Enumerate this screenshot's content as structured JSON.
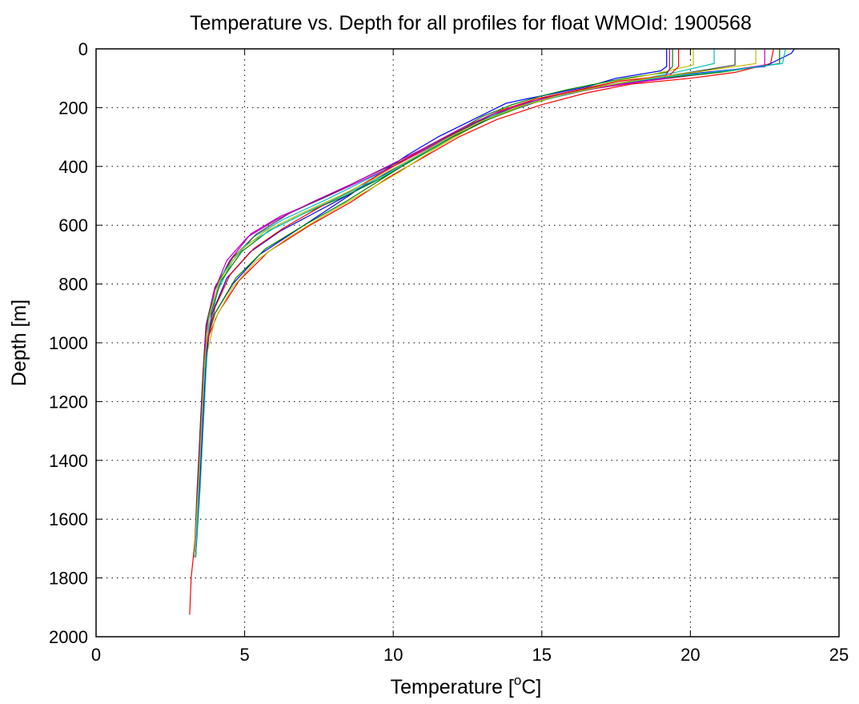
{
  "chart_data": {
    "type": "line",
    "title": "Temperature vs. Depth for all profiles for float WMOId: 1900568",
    "xlabel": "Temperature [",
    "xlabel_superscript": "o",
    "xlabel_suffix": "C]",
    "ylabel": "Depth [m]",
    "xlim": [
      0,
      25
    ],
    "ylim": [
      2000,
      0
    ],
    "y_reversed": true,
    "x_ticks": [
      0,
      5,
      10,
      15,
      20,
      25
    ],
    "y_ticks": [
      0,
      200,
      400,
      600,
      800,
      1000,
      1200,
      1400,
      1600,
      1800,
      2000
    ],
    "grid": true,
    "grid_style": "dotted",
    "legend": "none",
    "series": [
      {
        "color": "#0000ff",
        "points": [
          [
            19.2,
            0
          ],
          [
            19.2,
            60
          ],
          [
            19.0,
            75
          ],
          [
            17.5,
            100
          ],
          [
            16.5,
            130
          ],
          [
            15.5,
            150
          ],
          [
            14.5,
            170
          ],
          [
            13.8,
            185
          ],
          [
            13.5,
            200
          ],
          [
            12.5,
            250
          ],
          [
            11.5,
            300
          ],
          [
            10.5,
            360
          ],
          [
            9.6,
            420
          ],
          [
            8.5,
            500
          ],
          [
            7.0,
            600
          ],
          [
            5.5,
            700
          ],
          [
            4.6,
            800
          ],
          [
            4.0,
            900
          ],
          [
            3.7,
            1000
          ],
          [
            3.6,
            1200
          ],
          [
            3.5,
            1400
          ],
          [
            3.4,
            1600
          ],
          [
            3.3,
            1700
          ],
          [
            3.3,
            1730
          ]
        ]
      },
      {
        "color": "#008000",
        "points": [
          [
            19.4,
            0
          ],
          [
            19.4,
            60
          ],
          [
            19.2,
            80
          ],
          [
            17.8,
            100
          ],
          [
            16.8,
            120
          ],
          [
            15.8,
            140
          ],
          [
            15.0,
            160
          ],
          [
            14.0,
            190
          ],
          [
            13.0,
            230
          ],
          [
            11.8,
            300
          ],
          [
            10.6,
            380
          ],
          [
            9.5,
            450
          ],
          [
            8.4,
            520
          ],
          [
            7.0,
            600
          ],
          [
            5.7,
            680
          ],
          [
            4.7,
            780
          ],
          [
            4.0,
            900
          ],
          [
            3.7,
            1000
          ],
          [
            3.6,
            1200
          ],
          [
            3.5,
            1400
          ],
          [
            3.4,
            1600
          ],
          [
            3.3,
            1730
          ]
        ]
      },
      {
        "color": "#ff0000",
        "points": [
          [
            22.8,
            0
          ],
          [
            22.7,
            50
          ],
          [
            21.5,
            80
          ],
          [
            20.0,
            100
          ],
          [
            18.0,
            120
          ],
          [
            16.5,
            150
          ],
          [
            15.0,
            190
          ],
          [
            13.5,
            240
          ],
          [
            12.2,
            300
          ],
          [
            11.0,
            370
          ],
          [
            9.8,
            440
          ],
          [
            8.6,
            520
          ],
          [
            7.2,
            600
          ],
          [
            5.8,
            690
          ],
          [
            4.8,
            790
          ],
          [
            4.1,
            900
          ],
          [
            3.7,
            1000
          ],
          [
            3.6,
            1200
          ],
          [
            3.5,
            1400
          ],
          [
            3.4,
            1600
          ],
          [
            3.3,
            1700
          ],
          [
            3.2,
            1800
          ],
          [
            3.15,
            1925
          ]
        ]
      },
      {
        "color": "#00bfbf",
        "points": [
          [
            20.8,
            0
          ],
          [
            20.8,
            50
          ],
          [
            19.5,
            80
          ],
          [
            18.0,
            110
          ],
          [
            16.5,
            140
          ],
          [
            15.0,
            170
          ],
          [
            13.8,
            210
          ],
          [
            12.5,
            260
          ],
          [
            11.3,
            330
          ],
          [
            10.0,
            400
          ],
          [
            8.8,
            460
          ],
          [
            7.6,
            520
          ],
          [
            6.3,
            580
          ],
          [
            5.3,
            640
          ],
          [
            4.6,
            720
          ],
          [
            4.1,
            820
          ],
          [
            3.8,
            950
          ],
          [
            3.7,
            1100
          ],
          [
            3.6,
            1300
          ],
          [
            3.5,
            1500
          ],
          [
            3.35,
            1730
          ]
        ]
      },
      {
        "color": "#bf00bf",
        "points": [
          [
            22.5,
            0
          ],
          [
            22.5,
            55
          ],
          [
            20.5,
            85
          ],
          [
            18.5,
            110
          ],
          [
            16.8,
            135
          ],
          [
            15.2,
            165
          ],
          [
            14.0,
            200
          ],
          [
            12.8,
            250
          ],
          [
            11.5,
            320
          ],
          [
            10.2,
            390
          ],
          [
            8.9,
            450
          ],
          [
            7.6,
            510
          ],
          [
            6.2,
            570
          ],
          [
            5.2,
            630
          ],
          [
            4.5,
            720
          ],
          [
            4.0,
            820
          ],
          [
            3.7,
            950
          ],
          [
            3.6,
            1100
          ],
          [
            3.5,
            1300
          ],
          [
            3.45,
            1500
          ],
          [
            3.3,
            1730
          ]
        ]
      },
      {
        "color": "#bfbf00",
        "points": [
          [
            20.1,
            0
          ],
          [
            20.1,
            55
          ],
          [
            18.8,
            85
          ],
          [
            17.5,
            110
          ],
          [
            16.2,
            140
          ],
          [
            15.0,
            170
          ],
          [
            13.8,
            210
          ],
          [
            12.6,
            270
          ],
          [
            11.4,
            340
          ],
          [
            10.2,
            420
          ],
          [
            9.0,
            490
          ],
          [
            7.8,
            560
          ],
          [
            6.5,
            640
          ],
          [
            5.4,
            720
          ],
          [
            4.6,
            810
          ],
          [
            4.0,
            920
          ],
          [
            3.7,
            1050
          ],
          [
            3.6,
            1250
          ],
          [
            3.5,
            1450
          ],
          [
            3.35,
            1730
          ]
        ]
      },
      {
        "color": "#404040",
        "points": [
          [
            21.5,
            0
          ],
          [
            21.5,
            55
          ],
          [
            20.0,
            80
          ],
          [
            18.3,
            105
          ],
          [
            16.8,
            130
          ],
          [
            15.3,
            160
          ],
          [
            14.0,
            200
          ],
          [
            12.8,
            250
          ],
          [
            11.6,
            310
          ],
          [
            10.3,
            380
          ],
          [
            9.0,
            440
          ],
          [
            7.8,
            500
          ],
          [
            6.5,
            560
          ],
          [
            5.4,
            630
          ],
          [
            4.6,
            710
          ],
          [
            4.0,
            810
          ],
          [
            3.7,
            940
          ],
          [
            3.6,
            1100
          ],
          [
            3.5,
            1300
          ],
          [
            3.4,
            1500
          ],
          [
            3.3,
            1730
          ]
        ]
      },
      {
        "color": "#0000ff",
        "points": [
          [
            23.5,
            0
          ],
          [
            23.4,
            15
          ],
          [
            22.5,
            60
          ],
          [
            20.0,
            85
          ],
          [
            18.0,
            110
          ],
          [
            16.5,
            140
          ],
          [
            15.0,
            175
          ],
          [
            13.8,
            215
          ],
          [
            12.5,
            270
          ],
          [
            11.2,
            340
          ],
          [
            10.0,
            410
          ],
          [
            8.8,
            480
          ],
          [
            7.5,
            550
          ],
          [
            6.2,
            620
          ],
          [
            5.2,
            690
          ],
          [
            4.4,
            780
          ],
          [
            3.9,
            900
          ],
          [
            3.7,
            1050
          ],
          [
            3.6,
            1250
          ],
          [
            3.5,
            1450
          ],
          [
            3.35,
            1730
          ]
        ]
      },
      {
        "color": "#008000",
        "points": [
          [
            23.0,
            0
          ],
          [
            23.0,
            50
          ],
          [
            21.0,
            80
          ],
          [
            19.0,
            100
          ],
          [
            17.2,
            125
          ],
          [
            15.8,
            155
          ],
          [
            14.5,
            190
          ],
          [
            13.2,
            240
          ],
          [
            12.0,
            300
          ],
          [
            10.8,
            370
          ],
          [
            9.6,
            440
          ],
          [
            8.4,
            500
          ],
          [
            7.0,
            560
          ],
          [
            5.8,
            620
          ],
          [
            4.9,
            690
          ],
          [
            4.2,
            790
          ],
          [
            3.8,
            920
          ],
          [
            3.65,
            1080
          ],
          [
            3.55,
            1300
          ],
          [
            3.45,
            1500
          ],
          [
            3.3,
            1730
          ]
        ]
      },
      {
        "color": "#ff0000",
        "points": [
          [
            19.6,
            0
          ],
          [
            19.6,
            60
          ],
          [
            19.3,
            90
          ],
          [
            17.6,
            110
          ],
          [
            16.2,
            140
          ],
          [
            14.8,
            170
          ],
          [
            13.6,
            210
          ],
          [
            12.4,
            265
          ],
          [
            11.2,
            330
          ],
          [
            10.0,
            400
          ],
          [
            8.8,
            470
          ],
          [
            7.5,
            540
          ],
          [
            6.3,
            610
          ],
          [
            5.3,
            680
          ],
          [
            4.5,
            770
          ],
          [
            4.0,
            880
          ],
          [
            3.7,
            1020
          ],
          [
            3.6,
            1200
          ],
          [
            3.5,
            1400
          ],
          [
            3.4,
            1600
          ],
          [
            3.3,
            1730
          ]
        ]
      },
      {
        "color": "#00bfbf",
        "points": [
          [
            23.2,
            0
          ],
          [
            23.1,
            50
          ],
          [
            21.2,
            75
          ],
          [
            19.2,
            95
          ],
          [
            17.4,
            120
          ],
          [
            16.0,
            150
          ],
          [
            14.6,
            185
          ],
          [
            13.3,
            230
          ],
          [
            12.1,
            290
          ],
          [
            10.9,
            360
          ],
          [
            9.7,
            430
          ],
          [
            8.5,
            490
          ],
          [
            7.2,
            550
          ],
          [
            6.0,
            610
          ],
          [
            5.0,
            670
          ],
          [
            4.3,
            760
          ],
          [
            3.85,
            880
          ],
          [
            3.7,
            1020
          ],
          [
            3.6,
            1200
          ],
          [
            3.5,
            1400
          ],
          [
            3.35,
            1730
          ]
        ]
      },
      {
        "color": "#bf00bf",
        "points": [
          [
            19.3,
            0
          ],
          [
            19.3,
            70
          ],
          [
            19.1,
            100
          ],
          [
            17.3,
            125
          ],
          [
            15.9,
            150
          ],
          [
            14.6,
            180
          ],
          [
            13.4,
            220
          ],
          [
            12.2,
            275
          ],
          [
            11.0,
            340
          ],
          [
            9.8,
            400
          ],
          [
            8.6,
            460
          ],
          [
            7.3,
            520
          ],
          [
            6.1,
            580
          ],
          [
            5.1,
            640
          ],
          [
            4.4,
            720
          ],
          [
            3.95,
            830
          ],
          [
            3.7,
            970
          ],
          [
            3.6,
            1150
          ],
          [
            3.5,
            1350
          ],
          [
            3.4,
            1550
          ],
          [
            3.3,
            1730
          ]
        ]
      },
      {
        "color": "#bfbf00",
        "points": [
          [
            22.2,
            0
          ],
          [
            22.2,
            50
          ],
          [
            20.3,
            78
          ],
          [
            18.6,
            100
          ],
          [
            17.0,
            128
          ],
          [
            15.6,
            158
          ],
          [
            14.3,
            195
          ],
          [
            13.0,
            245
          ],
          [
            11.8,
            305
          ],
          [
            10.6,
            375
          ],
          [
            9.4,
            440
          ],
          [
            8.2,
            500
          ],
          [
            6.9,
            560
          ],
          [
            5.7,
            620
          ],
          [
            4.8,
            690
          ],
          [
            4.15,
            790
          ],
          [
            3.8,
            910
          ],
          [
            3.65,
            1070
          ],
          [
            3.55,
            1280
          ],
          [
            3.45,
            1480
          ],
          [
            3.3,
            1730
          ]
        ]
      }
    ]
  }
}
